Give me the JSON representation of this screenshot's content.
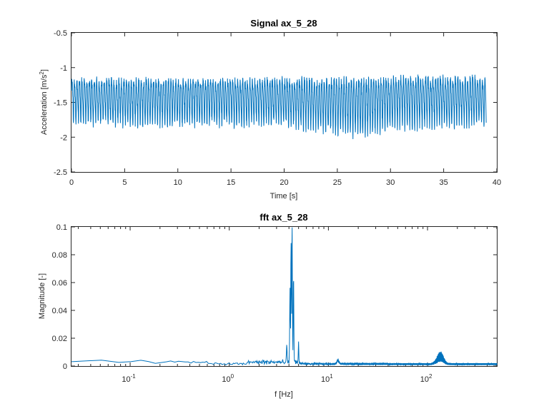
{
  "chart_data": [
    {
      "type": "line",
      "title": "Signal ax_5_28",
      "xlabel": "Time [s]",
      "ylabel_main": "Acceleration [m/s",
      "ylabel_sup": "2",
      "ylabel_tail": "]",
      "xlim": [
        0,
        40
      ],
      "ylim": [
        -2.5,
        -0.5
      ],
      "y_reversed": true,
      "x_ticks": [
        0,
        5,
        10,
        15,
        20,
        25,
        30,
        35,
        40
      ],
      "x_tick_labels": [
        "0",
        "5",
        "10",
        "15",
        "20",
        "25",
        "30",
        "35",
        "40"
      ],
      "y_ticks": [
        -0.5,
        -1,
        -1.5,
        -2,
        -2.5
      ],
      "y_tick_labels": [
        "-0.5",
        "-1",
        "-1.5",
        "-2",
        "-2.5"
      ],
      "grid": false,
      "signal": {
        "duration": 39,
        "dominant_freq_hz": 4.3,
        "mean": -1.45,
        "upper_envelope": [
          [
            0,
            -1.04
          ],
          [
            10,
            -1.05
          ],
          [
            20,
            -1.04
          ],
          [
            30,
            -1.0
          ],
          [
            39,
            -1.0
          ]
        ],
        "lower_envelope": [
          [
            0,
            -1.83
          ],
          [
            10,
            -1.85
          ],
          [
            20,
            -1.85
          ],
          [
            27.5,
            -2.02
          ],
          [
            30,
            -1.9
          ],
          [
            39,
            -1.85
          ]
        ]
      }
    },
    {
      "type": "line",
      "title": "fft ax_5_28",
      "xlabel": "f [Hz]",
      "ylabel": "Magnitude [-]",
      "xscale": "log",
      "xlim": [
        0.0256,
        500
      ],
      "ylim": [
        0,
        0.1
      ],
      "x_ticks": [
        0.1,
        1,
        10,
        100
      ],
      "x_tick_labels": [
        {
          "base": "10",
          "exp": "-1"
        },
        {
          "base": "10",
          "exp": "0"
        },
        {
          "base": "10",
          "exp": "1"
        },
        {
          "base": "10",
          "exp": "2"
        }
      ],
      "y_ticks": [
        0,
        0.02,
        0.04,
        0.06,
        0.08,
        0.1
      ],
      "y_tick_labels": [
        "0",
        "0.02",
        "0.04",
        "0.06",
        "0.08",
        "0.1"
      ],
      "grid": false,
      "peaks": [
        {
          "x": 4.3,
          "y": 0.097
        },
        {
          "x": 4.2,
          "y": 0.085
        },
        {
          "x": 4.45,
          "y": 0.06
        },
        {
          "x": 4.1,
          "y": 0.05
        },
        {
          "x": 3.8,
          "y": 0.012
        },
        {
          "x": 5.0,
          "y": 0.015
        },
        {
          "x": 12.5,
          "y": 0.004
        },
        {
          "x": 130,
          "y": 0.01
        },
        {
          "x": 140,
          "y": 0.009
        }
      ]
    }
  ]
}
